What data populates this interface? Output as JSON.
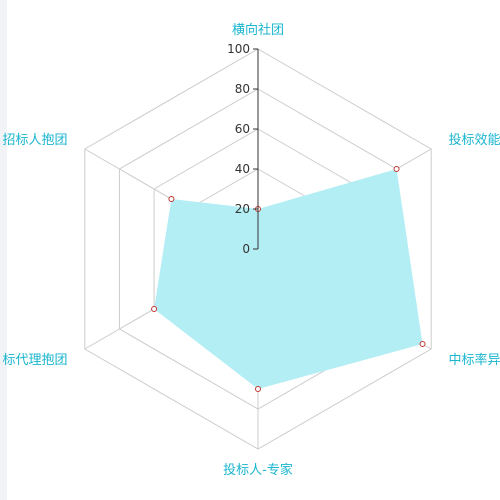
{
  "chart_data": {
    "type": "radar",
    "title": "",
    "indicators": [
      "横向社团",
      "投标效能",
      "中标率异",
      "投标人-专家",
      "标代理抱团",
      "招标人抱团"
    ],
    "values": [
      20,
      80,
      95,
      70,
      60,
      50
    ],
    "rlim": [
      0,
      100
    ],
    "ticks": [
      "0",
      "20",
      "40",
      "60",
      "80",
      "100"
    ],
    "grid": true,
    "legend": "none"
  },
  "colors": {
    "fill": "#b3eef5",
    "label": "#1ab6cf",
    "grid": "#cccccc",
    "axis": "#333333",
    "point": "#c23531"
  }
}
